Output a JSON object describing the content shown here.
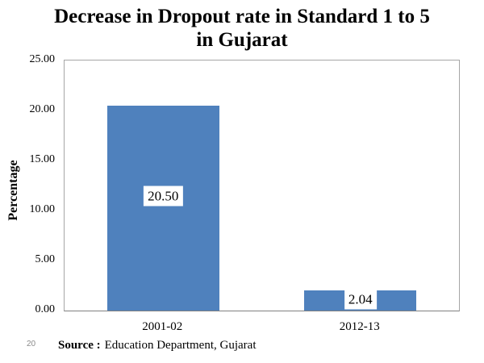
{
  "chart_data": {
    "type": "bar",
    "title": "Decrease in Dropout rate in Standard 1 to 5 in Gujarat",
    "title_lines": [
      "Decrease in Dropout rate in Standard 1 to 5",
      "in Gujarat"
    ],
    "categories": [
      "2001-02",
      "2012-13"
    ],
    "values": [
      20.5,
      2.04
    ],
    "value_labels": [
      "20.50",
      "2.04"
    ],
    "xlabel": "",
    "ylabel": "Percentage",
    "ylim": [
      0,
      25
    ],
    "ytick_values": [
      25,
      20,
      15,
      10,
      5,
      0
    ],
    "ytick_labels": [
      "25.00",
      "20.00",
      "15.00",
      "10.00",
      "5.00",
      "0.00"
    ],
    "bar_color": "#4f81bd",
    "grid": false,
    "legend": null
  },
  "footer": {
    "page_number": "20",
    "source_label": "Source :",
    "source_text": "Education Department, Gujarat"
  }
}
